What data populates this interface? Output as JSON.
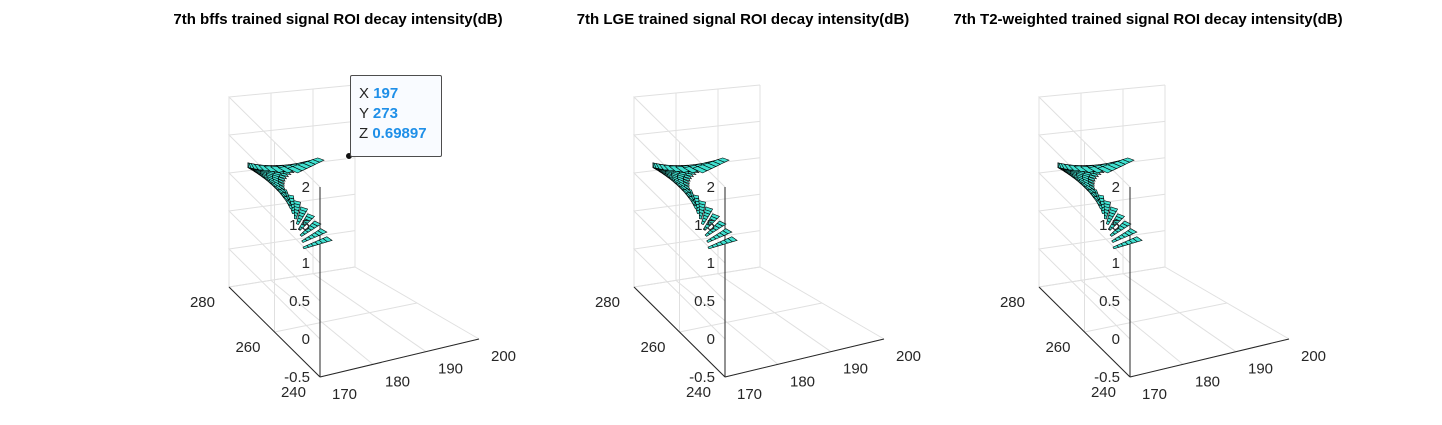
{
  "figure": {
    "panels": [
      {
        "title": "7th bffs trained signal ROI decay intensity(dB)"
      },
      {
        "title": "7th LGE trained signal ROI decay intensity(dB)"
      },
      {
        "title": "7th T2-weighted trained signal ROI decay intensity(dB)"
      }
    ]
  },
  "datatip": {
    "x_label": "X",
    "x_value": "197",
    "y_label": "Y",
    "y_value": "273",
    "z_label": "Z",
    "z_value": "0.69897"
  },
  "colors": {
    "surface": "#40e0d0",
    "edge": "#000000",
    "grid": "#e0e0e0",
    "tick": "#262626",
    "datatip_value": "#1f8fe8"
  },
  "chart_data": [
    {
      "type": "surface3d",
      "title": "7th bffs trained signal ROI decay intensity(dB)",
      "xlabel": "",
      "ylabel": "",
      "zlabel": "",
      "xlim": [
        170,
        200
      ],
      "ylim": [
        240,
        280
      ],
      "zlim": [
        -0.5,
        2
      ],
      "x_ticks": [
        "170",
        "180",
        "190",
        "200"
      ],
      "y_ticks": [
        "240",
        "260",
        "280"
      ],
      "z_ticks": [
        "-0.5",
        "0",
        "0.5",
        "1",
        "1.5",
        "2"
      ],
      "surface_z": 0.69897,
      "grid": true,
      "datatip": {
        "x": 197,
        "y": 273,
        "z": 0.69897
      }
    },
    {
      "type": "surface3d",
      "title": "7th LGE trained signal ROI decay intensity(dB)",
      "xlabel": "",
      "ylabel": "",
      "zlabel": "",
      "xlim": [
        170,
        200
      ],
      "ylim": [
        240,
        280
      ],
      "zlim": [
        -0.5,
        2
      ],
      "x_ticks": [
        "170",
        "180",
        "190",
        "200"
      ],
      "y_ticks": [
        "240",
        "260",
        "280"
      ],
      "z_ticks": [
        "-0.5",
        "0",
        "0.5",
        "1",
        "1.5",
        "2"
      ],
      "surface_z": 0.69897,
      "grid": true
    },
    {
      "type": "surface3d",
      "title": "7th T2-weighted trained signal ROI decay intensity(dB)",
      "xlabel": "",
      "ylabel": "",
      "zlabel": "",
      "xlim": [
        170,
        200
      ],
      "ylim": [
        240,
        280
      ],
      "zlim": [
        -0.5,
        2
      ],
      "x_ticks": [
        "170",
        "180",
        "190",
        "200"
      ],
      "y_ticks": [
        "240",
        "260",
        "280"
      ],
      "z_ticks": [
        "-0.5",
        "0",
        "0.5",
        "1",
        "1.5",
        "2"
      ],
      "surface_z": 0.69897,
      "grid": true
    }
  ]
}
